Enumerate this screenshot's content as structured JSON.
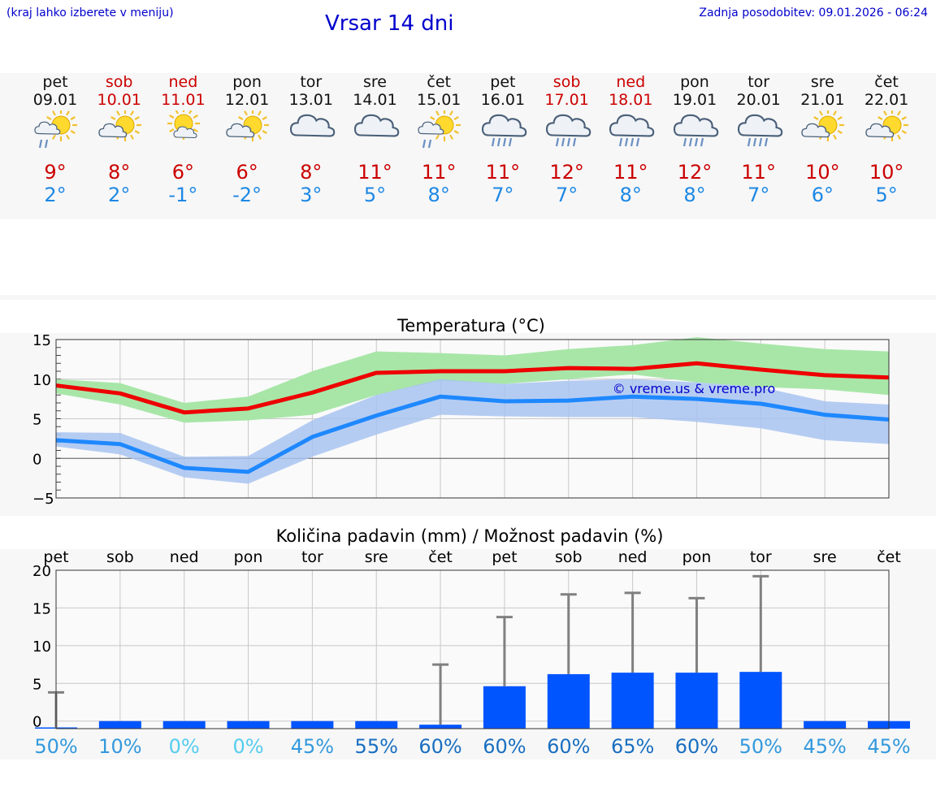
{
  "header": {
    "hint": "(kraj lahko izberete v meniju)",
    "title": "Vrsar 14 dni",
    "updated": "Zadnja posodobitev: 09.01.2026 - 06:24"
  },
  "days": [
    {
      "name": "pet",
      "date": "09.01",
      "weekend": false,
      "icon": "sun-cloud-rain-icon",
      "max": "9°",
      "min": "2°"
    },
    {
      "name": "sob",
      "date": "10.01",
      "weekend": true,
      "icon": "sun-cloud-icon",
      "max": "8°",
      "min": "2°"
    },
    {
      "name": "ned",
      "date": "11.01",
      "weekend": true,
      "icon": "sun-small-cloud-icon",
      "max": "6°",
      "min": "-1°"
    },
    {
      "name": "pon",
      "date": "12.01",
      "weekend": false,
      "icon": "sun-cloud-icon",
      "max": "6°",
      "min": "-2°"
    },
    {
      "name": "tor",
      "date": "13.01",
      "weekend": false,
      "icon": "cloud-icon",
      "max": "8°",
      "min": "3°"
    },
    {
      "name": "sre",
      "date": "14.01",
      "weekend": false,
      "icon": "cloud-icon",
      "max": "11°",
      "min": "5°"
    },
    {
      "name": "čet",
      "date": "15.01",
      "weekend": false,
      "icon": "sun-cloud-rain-icon",
      "max": "11°",
      "min": "8°"
    },
    {
      "name": "pet",
      "date": "16.01",
      "weekend": false,
      "icon": "cloud-rain-icon",
      "max": "11°",
      "min": "7°"
    },
    {
      "name": "sob",
      "date": "17.01",
      "weekend": true,
      "icon": "cloud-rain-icon",
      "max": "12°",
      "min": "7°"
    },
    {
      "name": "ned",
      "date": "18.01",
      "weekend": true,
      "icon": "cloud-rain-icon",
      "max": "11°",
      "min": "8°"
    },
    {
      "name": "pon",
      "date": "19.01",
      "weekend": false,
      "icon": "cloud-rain-icon",
      "max": "12°",
      "min": "8°"
    },
    {
      "name": "tor",
      "date": "20.01",
      "weekend": false,
      "icon": "cloud-rain-icon",
      "max": "11°",
      "min": "7°"
    },
    {
      "name": "sre",
      "date": "21.01",
      "weekend": false,
      "icon": "sun-cloud-icon",
      "max": "10°",
      "min": "6°"
    },
    {
      "name": "čet",
      "date": "22.01",
      "weekend": false,
      "icon": "sun-cloud-icon",
      "max": "10°",
      "min": "5°"
    }
  ],
  "colors": {
    "max_line": "#ee0000",
    "max_band": "#a8e6a8",
    "min_line": "#1e88ff",
    "min_band": "#a8c3f0",
    "overlap_band": "#7cc4b0",
    "bar": "#0055ff",
    "error_bar": "#808080",
    "grid": "#c8c8c8",
    "watermark": "#0000cc"
  },
  "chart_data": [
    {
      "type": "line",
      "title": "Temperatura (°C)",
      "watermark": "© vreme.us & vreme.pro",
      "ylim": [
        -5,
        15
      ],
      "yticks": [
        "15",
        "10",
        "5",
        "0",
        "−5"
      ],
      "ytick_values": [
        15,
        10,
        5,
        0,
        -5
      ],
      "x": [
        0,
        1,
        2,
        3,
        4,
        5,
        6,
        7,
        8,
        9,
        10,
        11,
        12,
        13
      ],
      "series": [
        {
          "name": "max",
          "values": [
            9.2,
            8.2,
            5.8,
            6.3,
            8.3,
            10.8,
            11.0,
            11.0,
            11.4,
            11.3,
            12.0,
            11.2,
            10.5,
            10.2
          ],
          "upper": [
            10.0,
            9.5,
            7.0,
            7.8,
            11.0,
            13.5,
            13.3,
            13.0,
            13.8,
            14.3,
            15.3,
            14.5,
            13.8,
            13.5
          ],
          "lower": [
            8.2,
            6.8,
            4.5,
            4.8,
            5.5,
            8.0,
            9.8,
            9.4,
            10.0,
            10.6,
            9.6,
            9.0,
            8.7,
            8.0
          ]
        },
        {
          "name": "min",
          "values": [
            2.3,
            1.8,
            -1.2,
            -1.7,
            2.7,
            5.4,
            7.8,
            7.2,
            7.3,
            7.8,
            7.5,
            6.9,
            5.5,
            4.9
          ],
          "upper": [
            3.3,
            3.2,
            0.2,
            0.3,
            4.8,
            8.0,
            10.0,
            9.4,
            9.8,
            10.0,
            9.6,
            9.0,
            7.2,
            6.8
          ],
          "lower": [
            1.5,
            0.5,
            -2.4,
            -3.2,
            0.2,
            3.0,
            5.5,
            5.3,
            5.2,
            5.2,
            4.6,
            3.8,
            2.3,
            1.8
          ]
        }
      ]
    },
    {
      "type": "bar",
      "title": "Količina padavin (mm) / Možnost padavin (%)",
      "ylim": [
        -1,
        20
      ],
      "yticks": [
        "20",
        "15",
        "10",
        "5",
        "0"
      ],
      "ytick_values": [
        20,
        15,
        10,
        5,
        0
      ],
      "categories": [
        "pet",
        "sob",
        "ned",
        "pon",
        "tor",
        "sre",
        "čet",
        "pet",
        "sob",
        "ned",
        "pon",
        "tor",
        "sre",
        "čet"
      ],
      "values": [
        0.1,
        0,
        0,
        0,
        0,
        0,
        0.6,
        5.7,
        7.3,
        7.5,
        7.5,
        7.6,
        0,
        0
      ],
      "error_high": [
        3.8,
        0,
        0,
        0,
        0,
        0,
        7.5,
        13.8,
        16.8,
        17.0,
        16.3,
        19.2,
        0,
        0
      ],
      "probability": [
        "50%",
        "10%",
        "0%",
        "0%",
        "45%",
        "55%",
        "60%",
        "60%",
        "60%",
        "65%",
        "60%",
        "50%",
        "45%",
        "45%"
      ],
      "probability_colors": [
        "#3399dd",
        "#3399dd",
        "#55ccee",
        "#55ccee",
        "#3399dd",
        "#1a6fc0",
        "#1a6fc0",
        "#1a6fc0",
        "#1a6fc0",
        "#1a6fc0",
        "#1a6fc0",
        "#3399dd",
        "#3399dd",
        "#3399dd"
      ]
    }
  ]
}
